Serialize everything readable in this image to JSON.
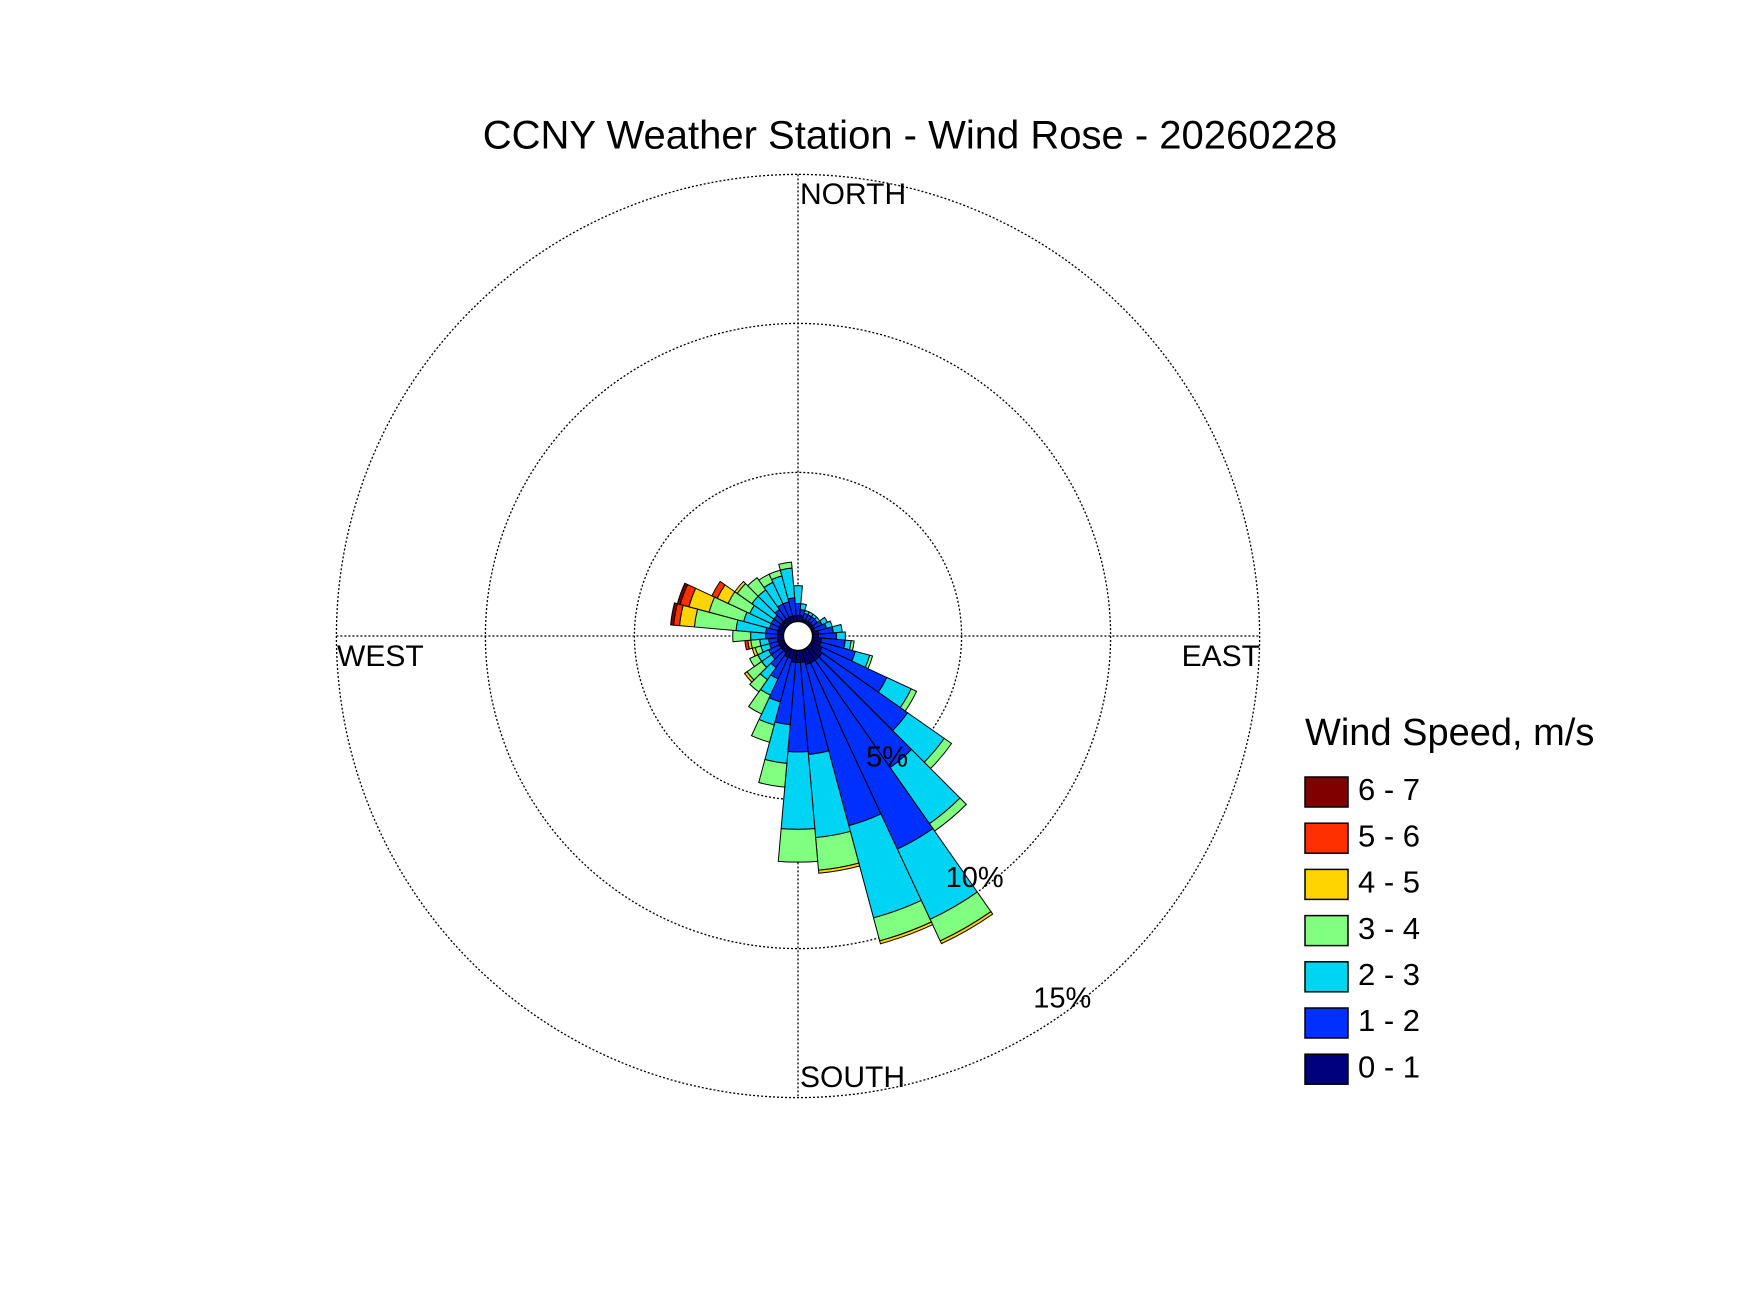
{
  "chart_data": {
    "type": "windrose",
    "title": "CCNY Weather Station - Wind Rose - 20260228",
    "direction_labels": [
      "NORTH",
      "EAST",
      "SOUTH",
      "WEST"
    ],
    "categories": [
      null,
      null,
      null,
      null,
      null,
      null,
      null,
      null,
      null,
      null,
      null,
      null,
      null,
      null,
      null,
      null,
      null,
      null,
      null,
      null,
      null,
      null,
      null,
      null,
      null,
      null,
      null,
      null,
      null,
      null,
      null,
      null,
      null,
      null,
      null,
      null
    ],
    "rlim": [
      0,
      15
    ],
    "rticks": [
      {
        "value": 5,
        "label": "5%"
      },
      {
        "value": 10,
        "label": "10%"
      },
      {
        "value": 15,
        "label": "15%"
      }
    ],
    "grid": true,
    "legend_title": "Wind Speed, m/s",
    "series": [
      {
        "name": "0 - 1",
        "color": "#00007f",
        "values": [
          0.2,
          0.2,
          0.1,
          0.1,
          0.1,
          0.1,
          0.1,
          0.1,
          0.2,
          0.2,
          0.3,
          0.3,
          0.4,
          0.5,
          0.5,
          0.5,
          0.5,
          0.4,
          0.4,
          0.4,
          0.3,
          0.3,
          0.2,
          0.2,
          0.2,
          0.2,
          0.2,
          0.2,
          0.2,
          0.2,
          0.2,
          0.2,
          0.2,
          0.2,
          0.2,
          0.2
        ]
      },
      {
        "name": "1 - 2",
        "color": "#0030ff",
        "values": [
          0.4,
          0.2,
          0.2,
          0.2,
          0.2,
          0.2,
          0.3,
          0.4,
          0.5,
          0.6,
          0.8,
          1.2,
          2.4,
          3.5,
          4.4,
          6.9,
          5.6,
          3.1,
          3.0,
          2.1,
          1.5,
          0.8,
          0.6,
          0.4,
          0.4,
          0.3,
          0.3,
          0.4,
          0.4,
          0.3,
          0.3,
          0.3,
          0.4,
          0.5,
          0.5,
          0.6
        ]
      },
      {
        "name": "2 - 3",
        "color": "#00d4f4",
        "values": [
          0.6,
          0.2,
          0.1,
          0.1,
          0.1,
          0.1,
          0.2,
          0.2,
          0.3,
          0.3,
          0.2,
          0.5,
          0.9,
          1.5,
          2.3,
          2.6,
          3.2,
          2.8,
          2.6,
          1.3,
          0.8,
          0.6,
          0.5,
          0.4,
          0.4,
          0.3,
          0.3,
          0.5,
          1.0,
          0.9,
          0.8,
          0.9,
          0.8,
          0.8,
          0.9,
          1.0
        ]
      },
      {
        "name": "3 - 4",
        "color": "#80ff80",
        "values": [
          0,
          0,
          0,
          0,
          0,
          0,
          0,
          0,
          0,
          0,
          0.1,
          0.1,
          0.2,
          0.3,
          0.3,
          0.8,
          0.8,
          1.1,
          1.1,
          0.8,
          0.6,
          0.7,
          0.5,
          0.6,
          0.3,
          0.2,
          0.3,
          0.6,
          1.4,
          1.2,
          0.8,
          0.6,
          0.5,
          0.3,
          0.2,
          0.2
        ]
      },
      {
        "name": "4 - 5",
        "color": "#ffd400",
        "values": [
          0,
          0,
          0,
          0,
          0,
          0,
          0,
          0,
          0,
          0,
          0,
          0,
          0,
          0,
          0,
          0.1,
          0.1,
          0.1,
          0,
          0,
          0,
          0,
          0,
          0.1,
          0,
          0.1,
          0.1,
          0,
          0.5,
          0.7,
          0.4,
          0.1,
          0,
          0,
          0,
          0
        ]
      },
      {
        "name": "5 - 6",
        "color": "#ff3000",
        "values": [
          0,
          0,
          0,
          0,
          0,
          0,
          0,
          0,
          0,
          0,
          0,
          0,
          0,
          0,
          0,
          0,
          0,
          0,
          0,
          0,
          0,
          0,
          0,
          0,
          0,
          0,
          0.1,
          0,
          0.2,
          0.3,
          0.2,
          0,
          0,
          0,
          0,
          0
        ]
      },
      {
        "name": "6 - 7",
        "color": "#800000",
        "values": [
          0,
          0,
          0,
          0,
          0,
          0,
          0,
          0,
          0,
          0,
          0,
          0,
          0,
          0,
          0,
          0,
          0,
          0,
          0,
          0,
          0,
          0,
          0,
          0,
          0,
          0,
          0,
          0,
          0.1,
          0.1,
          0,
          0,
          0,
          0,
          0,
          0
        ]
      }
    ]
  }
}
